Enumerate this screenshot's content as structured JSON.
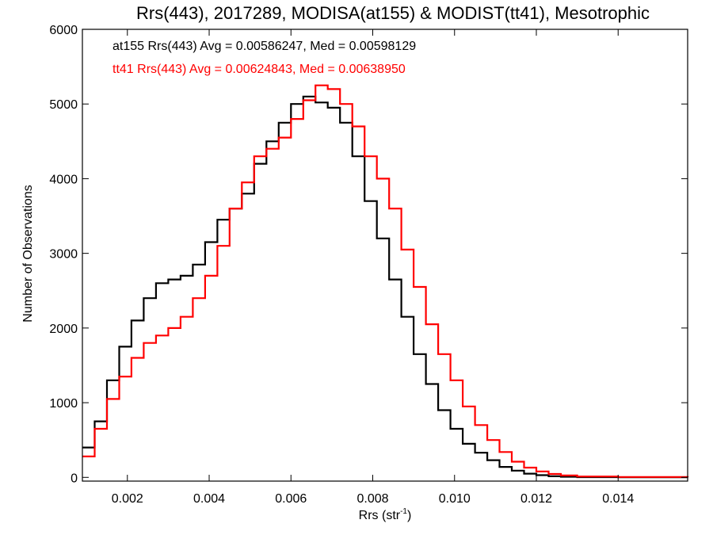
{
  "chart_data": {
    "type": "line",
    "title": "Rrs(443), 2017289, MODISA(at155) & MODIST(tt41), Mesotrophic",
    "xlabel_main": "Rrs (str",
    "xlabel_sup": "-1",
    "xlabel_close": ")",
    "ylabel": "Number of Observations",
    "xlim": [
      0.0009,
      0.0157
    ],
    "ylim": [
      -50,
      6000
    ],
    "x_ticks": [
      0.002,
      0.004,
      0.006,
      0.008,
      0.01,
      0.012,
      0.014
    ],
    "x_tick_labels": [
      "0.002",
      "0.004",
      "0.006",
      "0.008",
      "0.010",
      "0.012",
      "0.014"
    ],
    "y_ticks": [
      0,
      1000,
      2000,
      3000,
      4000,
      5000,
      6000
    ],
    "y_tick_labels": [
      "0",
      "1000",
      "2000",
      "3000",
      "4000",
      "5000",
      "6000"
    ],
    "grid": false,
    "legend_position": "top-left",
    "series": [
      {
        "name": "at155 Rrs(443) Avg = 0.00586247, Med = 0.00598129",
        "color": "#000000",
        "x": [
          0.0009,
          0.0012,
          0.0015,
          0.0018,
          0.0021,
          0.0024,
          0.0027,
          0.003,
          0.0033,
          0.0036,
          0.0039,
          0.0042,
          0.0045,
          0.0048,
          0.0051,
          0.0054,
          0.0057,
          0.006,
          0.0063,
          0.0066,
          0.0069,
          0.0072,
          0.0075,
          0.0078,
          0.0081,
          0.0084,
          0.0087,
          0.009,
          0.0093,
          0.0096,
          0.0099,
          0.0102,
          0.0105,
          0.0108,
          0.0111,
          0.0114,
          0.0117,
          0.012,
          0.0123,
          0.0126,
          0.013,
          0.014,
          0.0157
        ],
        "y": [
          400,
          750,
          1300,
          1750,
          2100,
          2400,
          2600,
          2650,
          2700,
          2850,
          3150,
          3450,
          3600,
          3800,
          4200,
          4500,
          4750,
          5000,
          5100,
          5020,
          4950,
          4750,
          4300,
          3700,
          3200,
          2650,
          2150,
          1650,
          1250,
          900,
          650,
          450,
          330,
          230,
          140,
          90,
          50,
          30,
          15,
          8,
          3,
          1,
          0
        ]
      },
      {
        "name": "tt41 Rrs(443) Avg = 0.00624843, Med = 0.00638950",
        "color": "#ff0000",
        "x": [
          0.0009,
          0.0012,
          0.0015,
          0.0018,
          0.0021,
          0.0024,
          0.0027,
          0.003,
          0.0033,
          0.0036,
          0.0039,
          0.0042,
          0.0045,
          0.0048,
          0.0051,
          0.0054,
          0.0057,
          0.006,
          0.0063,
          0.0066,
          0.0069,
          0.0072,
          0.0075,
          0.0078,
          0.0081,
          0.0084,
          0.0087,
          0.009,
          0.0093,
          0.0096,
          0.0099,
          0.0102,
          0.0105,
          0.0108,
          0.0111,
          0.0114,
          0.0117,
          0.012,
          0.0123,
          0.0126,
          0.013,
          0.014,
          0.0157
        ],
        "y": [
          280,
          650,
          1050,
          1350,
          1600,
          1800,
          1900,
          2000,
          2150,
          2400,
          2700,
          3100,
          3600,
          3950,
          4300,
          4400,
          4550,
          4800,
          5050,
          5250,
          5200,
          5000,
          4700,
          4300,
          4000,
          3600,
          3050,
          2550,
          2050,
          1650,
          1300,
          950,
          700,
          500,
          340,
          210,
          130,
          80,
          45,
          25,
          12,
          5,
          2
        ]
      }
    ]
  }
}
